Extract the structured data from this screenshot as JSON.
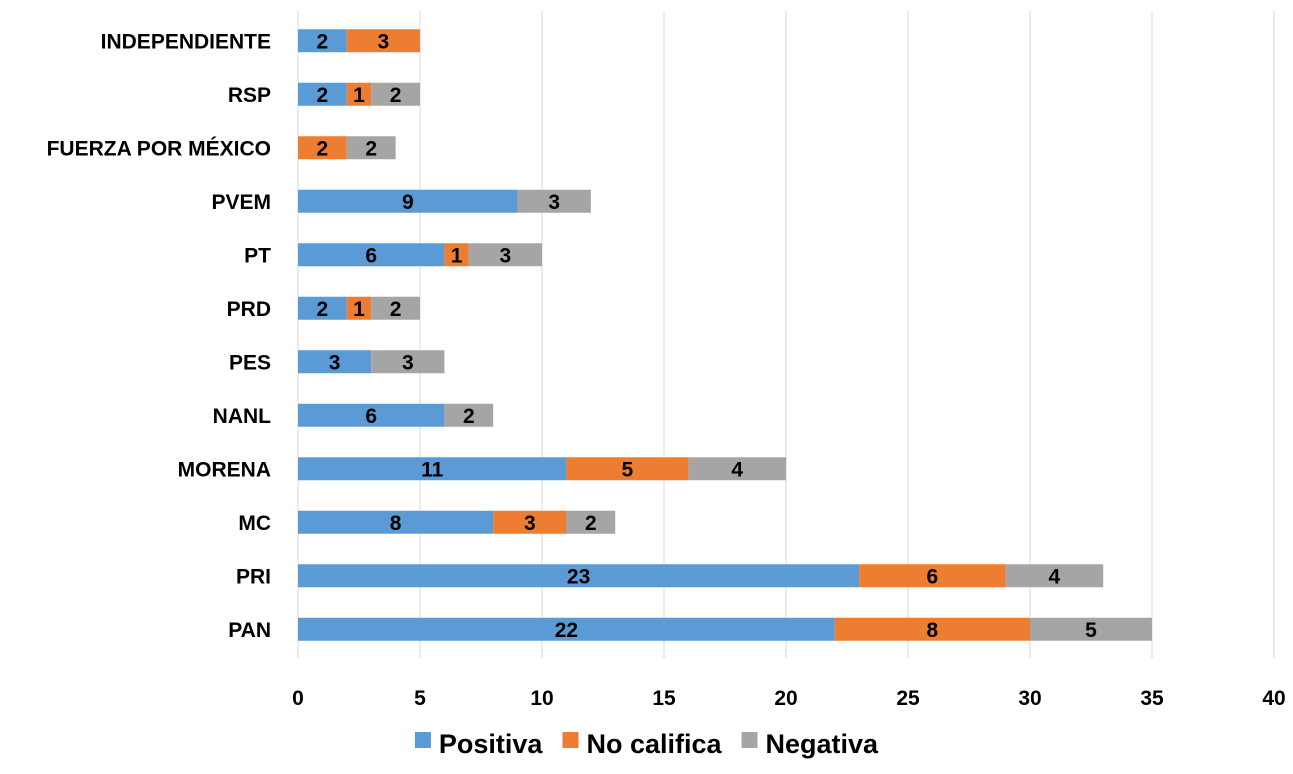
{
  "chart_data": {
    "type": "bar",
    "orientation": "horizontal",
    "stacked": true,
    "title": "",
    "xlabel": "",
    "ylabel": "",
    "xlim": [
      0,
      40
    ],
    "xticks": [
      0,
      5,
      10,
      15,
      20,
      25,
      30,
      35,
      40
    ],
    "grid": true,
    "legend_position": "bottom",
    "categories": [
      "PAN",
      "PRI",
      "MC",
      "MORENA",
      "NANL",
      "PES",
      "PRD",
      "PT",
      "PVEM",
      "FUERZA POR MÉXICO",
      "RSP",
      "INDEPENDIENTE"
    ],
    "series": [
      {
        "name": "Positiva",
        "color": "#5b9bd5",
        "values": [
          22,
          23,
          8,
          11,
          6,
          3,
          2,
          6,
          9,
          0,
          2,
          2
        ]
      },
      {
        "name": "No califica",
        "color": "#ed7d31",
        "values": [
          8,
          6,
          3,
          5,
          0,
          0,
          1,
          1,
          0,
          2,
          1,
          3
        ]
      },
      {
        "name": "Negativa",
        "color": "#a5a5a5",
        "values": [
          5,
          4,
          2,
          4,
          2,
          3,
          2,
          3,
          3,
          2,
          2,
          0
        ]
      }
    ]
  }
}
